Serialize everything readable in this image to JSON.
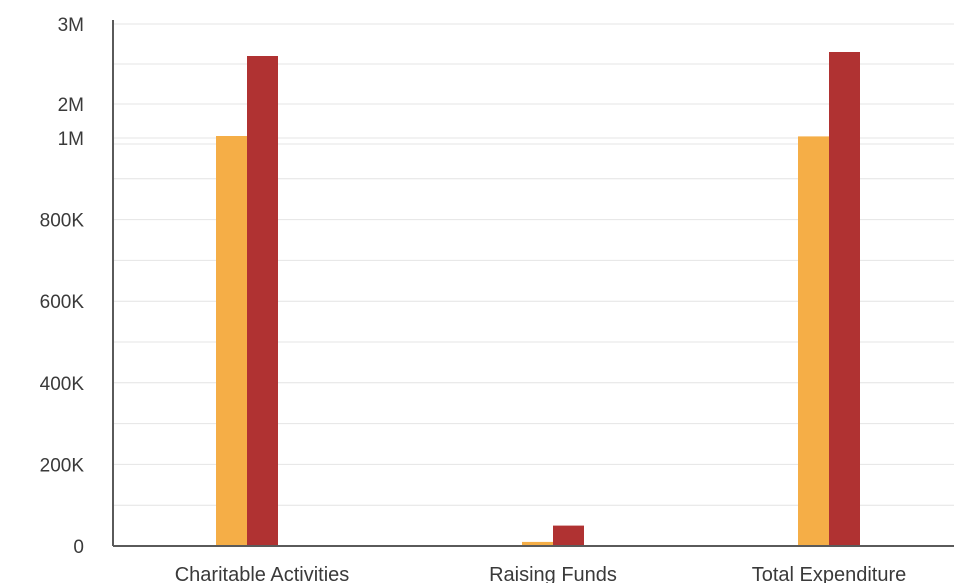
{
  "chart_data": {
    "type": "bar",
    "categories": [
      "Charitable Activities",
      "Raising Funds",
      "Total Expenditure"
    ],
    "series": [
      {
        "values": [
          1600000,
          10000,
          1595000
        ],
        "color": "#F5AE47"
      },
      {
        "values": [
          2600000,
          50000,
          2650000
        ],
        "color": "#B03232"
      }
    ],
    "y_ticks": [
      {
        "label": "0",
        "value": 0
      },
      {
        "label": "200K",
        "value": 200000
      },
      {
        "label": "400K",
        "value": 400000
      },
      {
        "label": "600K",
        "value": 600000
      },
      {
        "label": "800K",
        "value": 800000
      },
      {
        "label": "1M",
        "value": 1000000
      },
      {
        "label": "2M",
        "value": 2000000
      },
      {
        "label": "3M",
        "value": 3000000
      }
    ],
    "ylim": [
      0,
      3000000
    ],
    "scale": "piecewise: linear 0–1M, then 1M per major step",
    "grid": true,
    "legend": "none",
    "title": "",
    "xlabel": "",
    "ylabel": ""
  }
}
